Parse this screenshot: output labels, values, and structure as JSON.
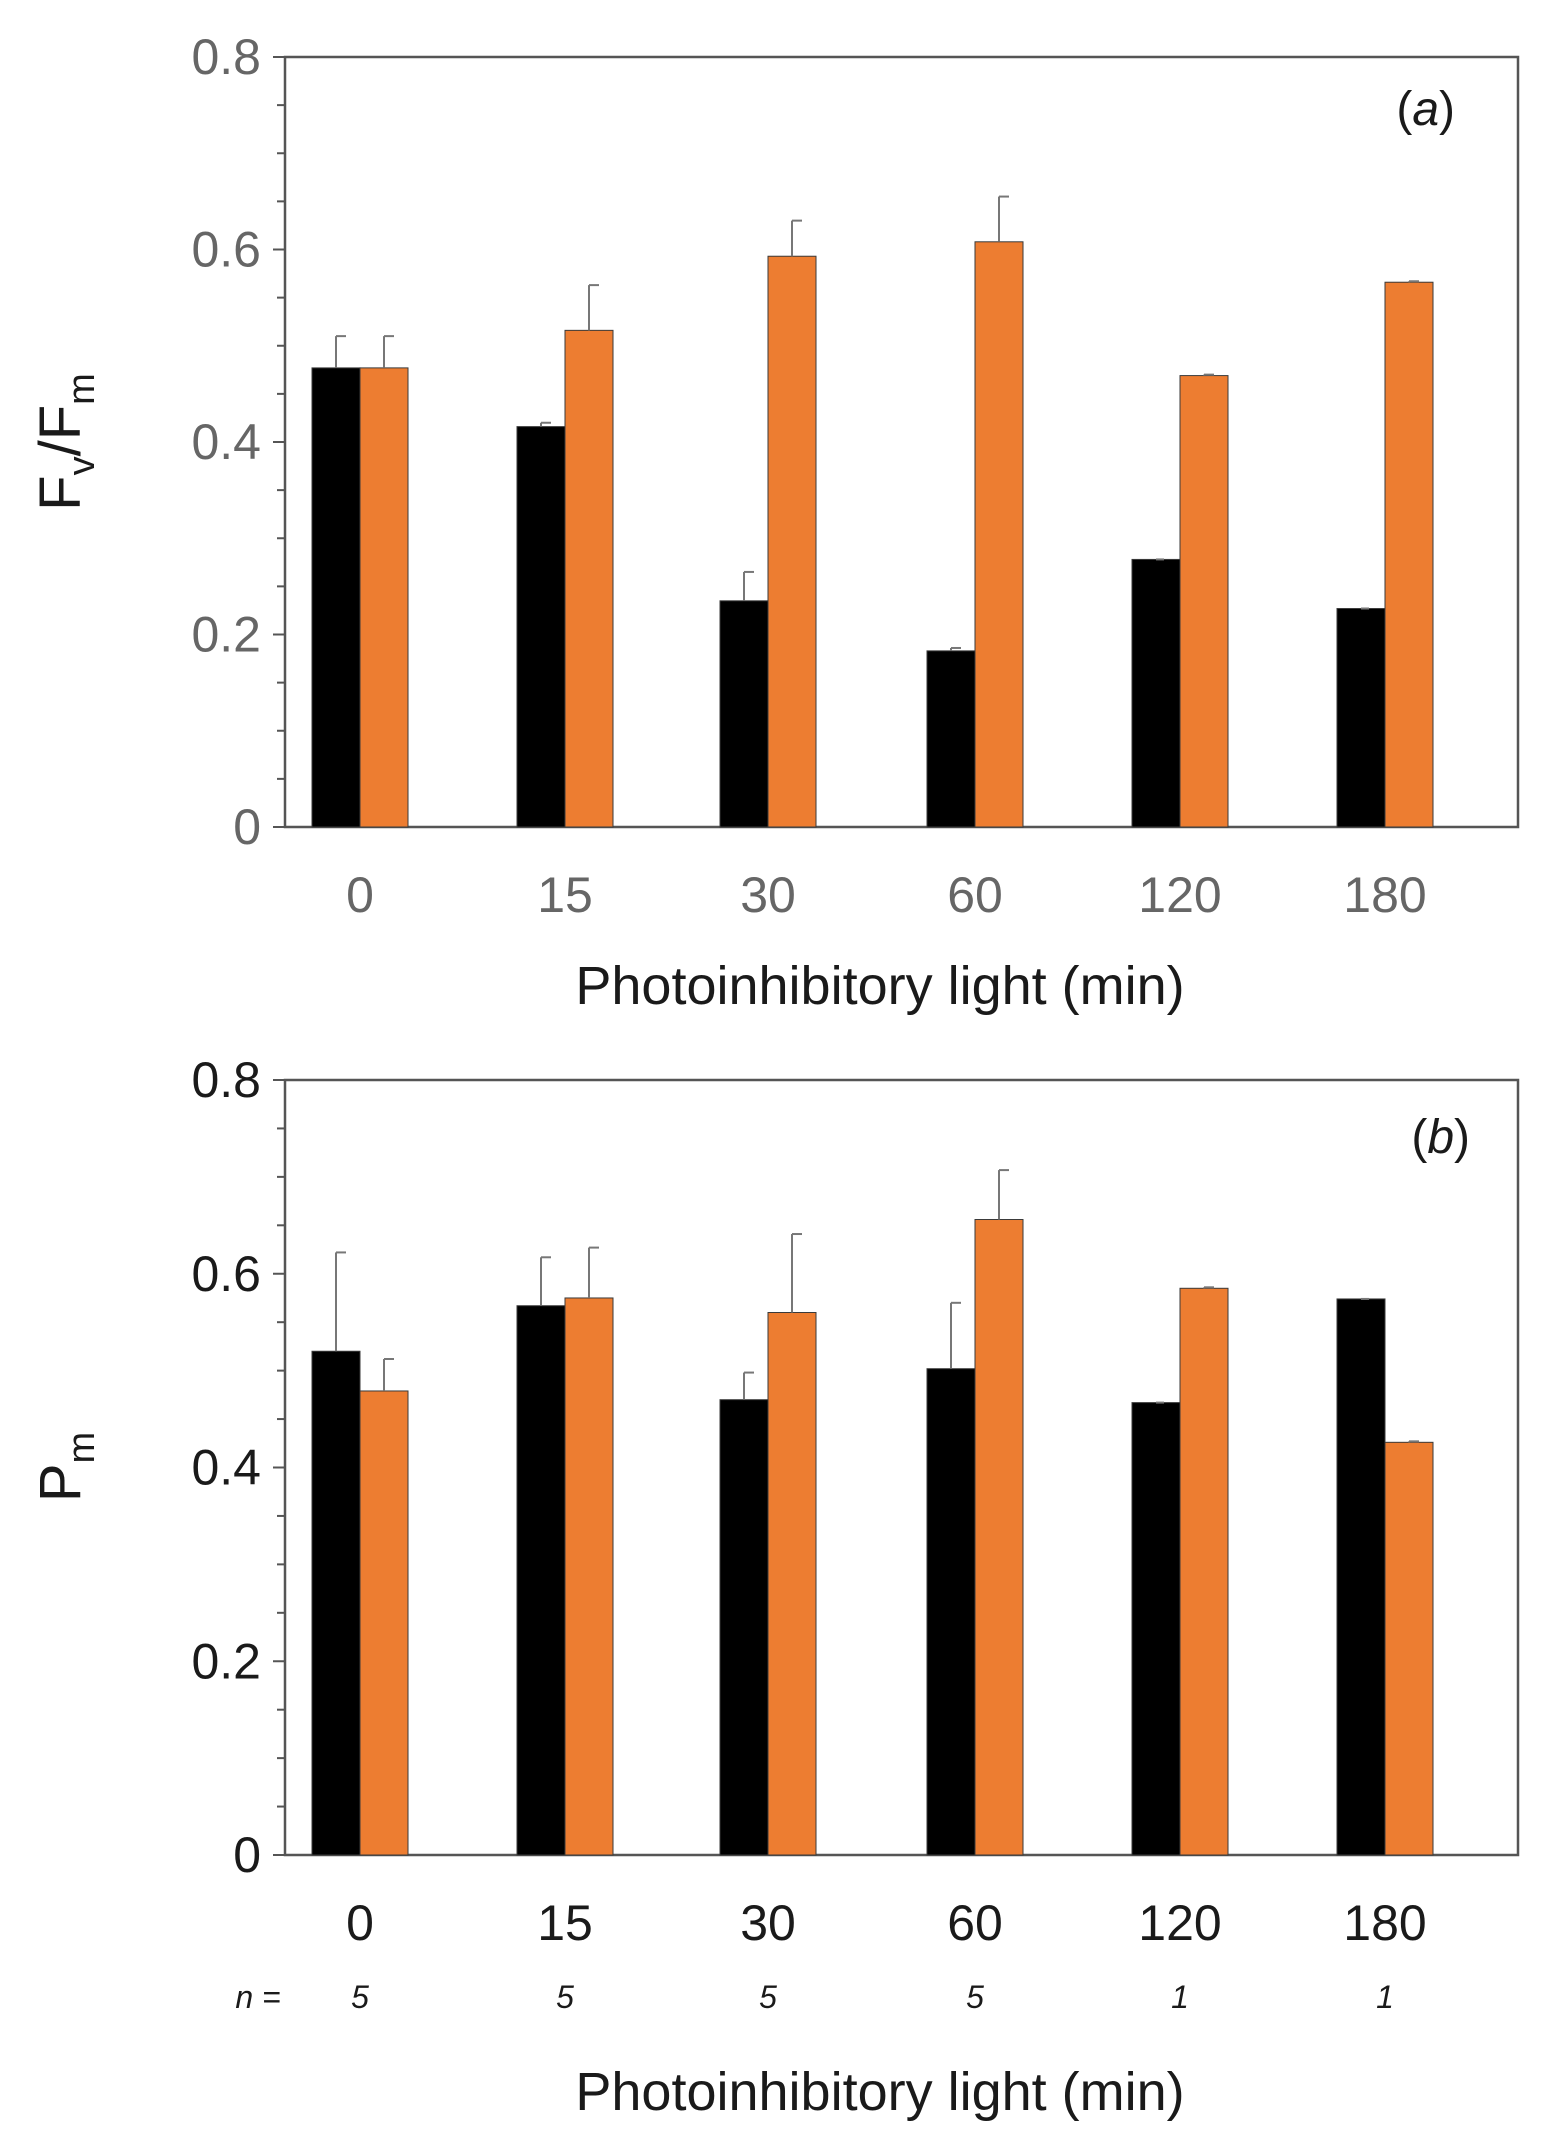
{
  "colors": {
    "series_a": "#000000",
    "series_b": "#ED7D31",
    "axis": "#555555",
    "error_bar": "#777777"
  },
  "chart_data": [
    {
      "type": "bar",
      "panel_label_pre": "(",
      "panel_label_letter": "a",
      "panel_label_post": ")",
      "categories": [
        "0",
        "15",
        "30",
        "60",
        "120",
        "180"
      ],
      "series": [
        {
          "values": [
            0.477,
            0.416,
            0.235,
            0.183,
            0.278,
            0.227
          ],
          "errors": [
            0.033,
            0.004,
            0.03,
            0.003,
            0.0,
            0.0
          ]
        },
        {
          "values": [
            0.477,
            0.516,
            0.593,
            0.608,
            0.469,
            0.566
          ],
          "errors": [
            0.033,
            0.047,
            0.037,
            0.047,
            0.001,
            0.001
          ]
        }
      ],
      "ylabel_main": "F",
      "ylabel_sub1": "v",
      "ylabel_mid": "/F",
      "ylabel_sub2": "m",
      "xlabel": "Photoinhibitory light (min)",
      "ylim": [
        0,
        0.8
      ],
      "yticks": [
        "0",
        "0.2",
        "0.4",
        "0.6",
        "0.8"
      ],
      "tick_color": "#666666",
      "grid": false
    },
    {
      "type": "bar",
      "panel_label_pre": "(",
      "panel_label_letter": "b",
      "panel_label_post": ")",
      "categories": [
        "0",
        "15",
        "30",
        "60",
        "120",
        "180"
      ],
      "series": [
        {
          "values": [
            0.52,
            0.567,
            0.47,
            0.502,
            0.467,
            0.574
          ],
          "errors": [
            0.102,
            0.05,
            0.028,
            0.068,
            0.0,
            0.0
          ]
        },
        {
          "values": [
            0.479,
            0.575,
            0.56,
            0.656,
            0.585,
            0.426
          ],
          "errors": [
            0.033,
            0.052,
            0.081,
            0.051,
            0.001,
            0.001
          ]
        }
      ],
      "ylabel_main": "P",
      "ylabel_sub": "m",
      "xlabel": "Photoinhibitory light (min)",
      "ylim": [
        0,
        0.8
      ],
      "yticks": [
        "0",
        "0.2",
        "0.4",
        "0.6",
        "0.8"
      ],
      "tick_color": "#1a1a1a",
      "n_prefix": "n =",
      "n_values": [
        "5",
        "5",
        "5",
        "5",
        "1",
        "1"
      ],
      "grid": false
    }
  ]
}
